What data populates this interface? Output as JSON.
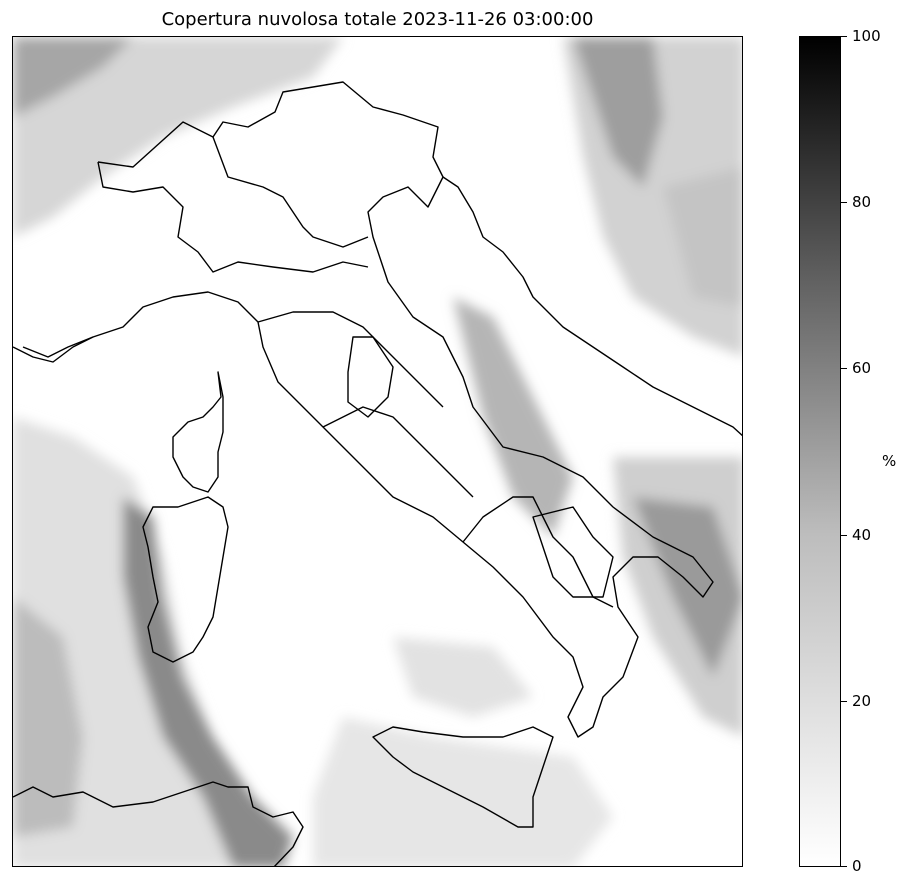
{
  "title": "Copertura nuvolosa totale 2023-11-26 03:00:00",
  "colorbar": {
    "unit": "%",
    "min": 0,
    "max": 100,
    "ticks": [
      "0",
      "20",
      "40",
      "60",
      "80",
      "100"
    ],
    "colors": {
      "low": "#ffffff",
      "high": "#000000"
    }
  },
  "map": {
    "variable": "total cloud cover",
    "region": "Italy",
    "borders_color": "#000000",
    "cloud_shades": [
      "#f2f2f2",
      "#d9d9d9",
      "#bfbfbf",
      "#8c8c8c",
      "#6e6e6e"
    ]
  }
}
